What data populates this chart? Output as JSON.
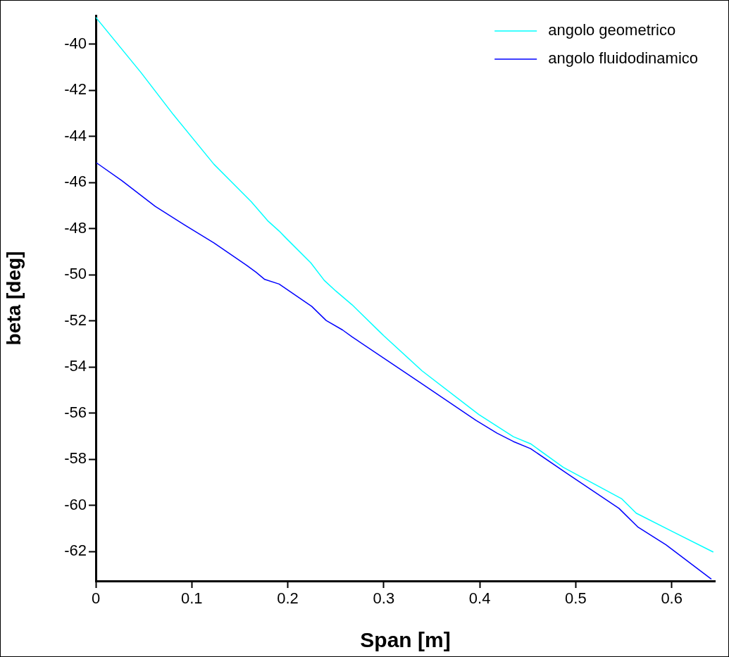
{
  "chart_data": {
    "type": "line",
    "xlabel": "Span [m]",
    "ylabel": "beta [deg]",
    "xlim": [
      0,
      0.645
    ],
    "ylim": [
      -63.28,
      -38.75
    ],
    "xticks": [
      0,
      0.1,
      0.2,
      0.3,
      0.4,
      0.5,
      0.6
    ],
    "yticks": [
      -40,
      -42,
      -44,
      -46,
      -48,
      -50,
      -52,
      -54,
      -56,
      -58,
      -60,
      -62
    ],
    "grid": false,
    "legend": "top right",
    "marker": "none",
    "line_style": "solid",
    "series": [
      {
        "name": "angolo geometrico",
        "color": "#00ffff",
        "x": [
          0,
          0.047,
          0.081,
          0.123,
          0.162,
          0.179,
          0.191,
          0.198,
          0.224,
          0.238,
          0.25,
          0.267,
          0.295,
          0.3,
          0.34,
          0.399,
          0.435,
          0.453,
          0.487,
          0.548,
          0.563,
          0.599,
          0.643
        ],
        "values": [
          -38.83,
          -41.22,
          -43.06,
          -45.2,
          -46.83,
          -47.65,
          -48.1,
          -48.4,
          -49.48,
          -50.24,
          -50.7,
          -51.3,
          -52.44,
          -52.64,
          -54.17,
          -56.06,
          -57.02,
          -57.33,
          -58.35,
          -59.72,
          -60.34,
          -61.1,
          -62.02
        ]
      },
      {
        "name": "angolo fluidodinamico",
        "color": "#0000ff",
        "x": [
          0.001,
          0.027,
          0.062,
          0.093,
          0.123,
          0.157,
          0.167,
          0.176,
          0.191,
          0.225,
          0.24,
          0.257,
          0.267,
          0.338,
          0.396,
          0.418,
          0.435,
          0.453,
          0.492,
          0.545,
          0.565,
          0.594,
          0.641
        ],
        "values": [
          -45.15,
          -45.91,
          -47.03,
          -47.85,
          -48.61,
          -49.58,
          -49.89,
          -50.2,
          -50.4,
          -51.37,
          -51.98,
          -52.39,
          -52.69,
          -54.68,
          -56.31,
          -56.87,
          -57.23,
          -57.54,
          -58.65,
          -60.13,
          -60.95,
          -61.71,
          -63.19
        ]
      }
    ]
  }
}
